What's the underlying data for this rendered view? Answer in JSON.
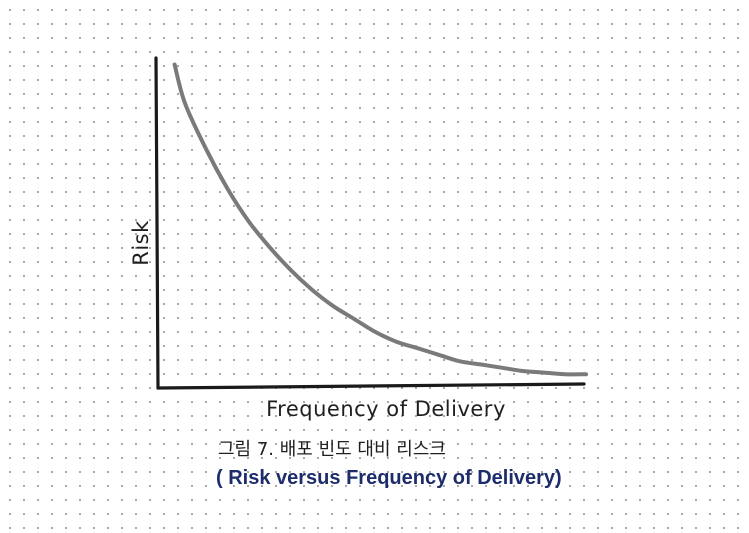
{
  "caption": {
    "korean": "그림 7. 배포 빈도 대비 리스크",
    "english": "( Risk versus Frequency of Delivery)"
  },
  "colors": {
    "axis": "#1a1a1a",
    "curve": "#7a7a7a",
    "caption_english": "#1d2d6b"
  },
  "chart_data": {
    "type": "line",
    "title": "",
    "xlabel": "Frequency of Delivery",
    "ylabel": "Risk",
    "x_ticks": false,
    "y_ticks": false,
    "grid": false,
    "legend": "none",
    "xlim": [
      0,
      10
    ],
    "ylim": [
      0,
      10
    ],
    "series": [
      {
        "name": "",
        "x": [
          0.25,
          0.5,
          1,
          1.5,
          2,
          2.5,
          3,
          3.5,
          4,
          4.5,
          5,
          5.5,
          6,
          6.5,
          7,
          7.5,
          8,
          8.5,
          9,
          9.5,
          10
        ],
        "y": [
          9.8,
          8.6,
          7.2,
          6.0,
          5.0,
          4.2,
          3.5,
          2.9,
          2.4,
          2.0,
          1.6,
          1.3,
          1.1,
          0.9,
          0.7,
          0.6,
          0.5,
          0.4,
          0.35,
          0.3,
          0.3
        ]
      }
    ]
  }
}
